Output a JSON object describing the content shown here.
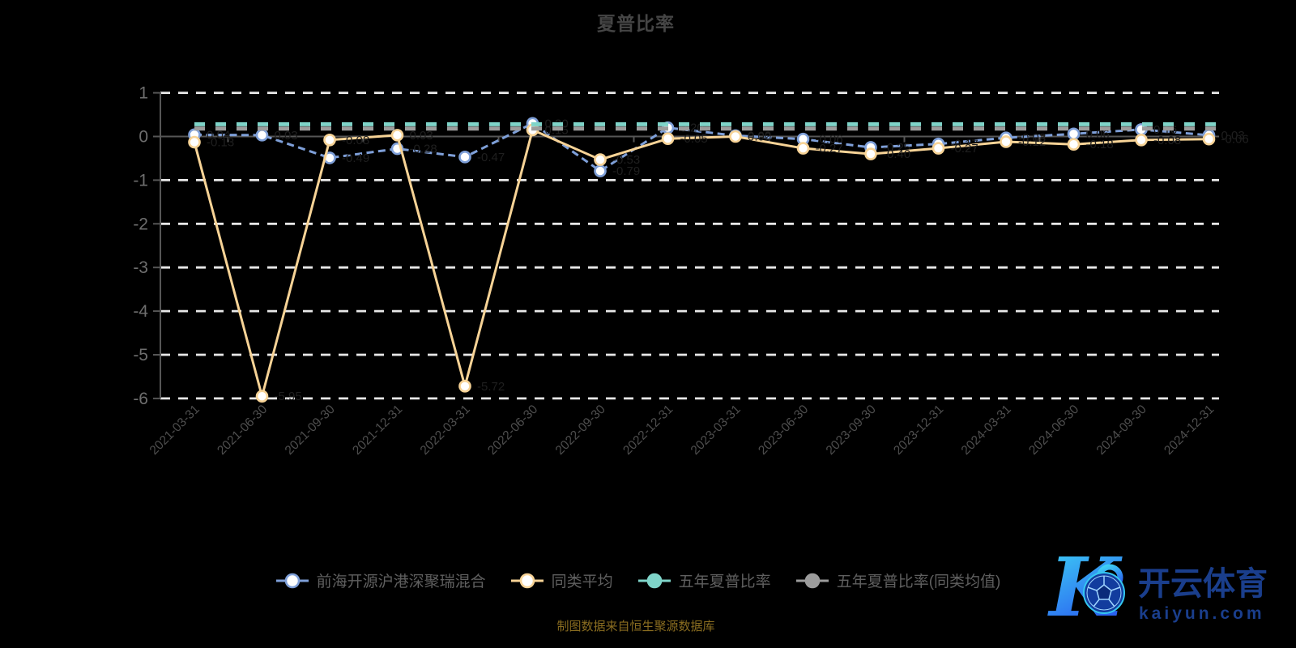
{
  "title": "夏普比率",
  "source_note": "制图数据来自恒生聚源数据库",
  "colors": {
    "background": "#000000",
    "title": "#454545",
    "grid": "#e8e8e8",
    "axis": "#565656",
    "y_tick_label": "#6e6e6e",
    "x_tick_label": "#4e4e4e",
    "legend_text": "#5f5f5f",
    "data_label": "#1f1f1f",
    "source_text": "#8a6d20",
    "fund_line": "#7e9fd8",
    "peer_line": "#f7d396",
    "five_year_line": "#7fd4c9",
    "five_year_avg_line": "#9c9c9c",
    "logo_blue": "#1a3e8c",
    "logo_gradient_top": "#3fd9f5",
    "logo_gradient_bottom": "#2a5df0"
  },
  "chart_data": {
    "type": "line",
    "title": "夏普比率",
    "xlabel": "",
    "ylabel": "",
    "ylim": [
      -6,
      1
    ],
    "yticks": [
      1,
      0,
      -1,
      -2,
      -3,
      -4,
      -5,
      -6
    ],
    "grid": "horizontal-dashed-white",
    "legend_position": "bottom",
    "categories": [
      "2021-03-31",
      "2021-06-30",
      "2021-09-30",
      "2021-12-31",
      "2022-03-31",
      "2022-06-30",
      "2022-09-30",
      "2022-12-31",
      "2023-03-31",
      "2023-06-30",
      "2023-09-30",
      "2023-12-31",
      "2024-03-31",
      "2024-06-30",
      "2024-09-30",
      "2024-12-31"
    ],
    "series": [
      {
        "name": "前海开源沪港深聚瑞混合",
        "color": "#7e9fd8",
        "line_style": "dashed",
        "marker": "hollow-circle",
        "values": [
          0.04,
          0.03,
          -0.49,
          -0.28,
          -0.47,
          0.3,
          -0.79,
          0.2,
          0.02,
          -0.06,
          -0.25,
          -0.17,
          -0.03,
          0.06,
          0.16,
          0.03
        ]
      },
      {
        "name": "同类平均",
        "color": "#f7d396",
        "line_style": "solid",
        "marker": "hollow-circle",
        "values": [
          -0.13,
          -5.95,
          -0.08,
          0.03,
          -5.72,
          0.15,
          -0.53,
          -0.05,
          0.0,
          -0.27,
          -0.4,
          -0.27,
          -0.12,
          -0.18,
          -0.08,
          -0.06
        ]
      },
      {
        "name": "五年夏普比率",
        "color": "#7fd4c9",
        "line_style": "dashed-thick",
        "marker": "solid-circle",
        "constant": 0.28
      },
      {
        "name": "五年夏普比率(同类均值)",
        "color": "#9c9c9c",
        "line_style": "dashed-thick",
        "marker": "solid-circle",
        "constant": 0.18
      }
    ]
  },
  "legend": {
    "items": [
      {
        "label": "前海开源沪港深聚瑞混合",
        "color": "#7e9fd8",
        "marker": "hollow"
      },
      {
        "label": "同类平均",
        "color": "#f7d396",
        "marker": "hollow"
      },
      {
        "label": "五年夏普比率",
        "color": "#7fd4c9",
        "marker": "solid"
      },
      {
        "label": "五年夏普比率(同类均值)",
        "color": "#9c9c9c",
        "marker": "solid"
      }
    ]
  },
  "logo": {
    "monogram": "K",
    "brand": "开云体育",
    "domain": "kaiyun.com"
  }
}
